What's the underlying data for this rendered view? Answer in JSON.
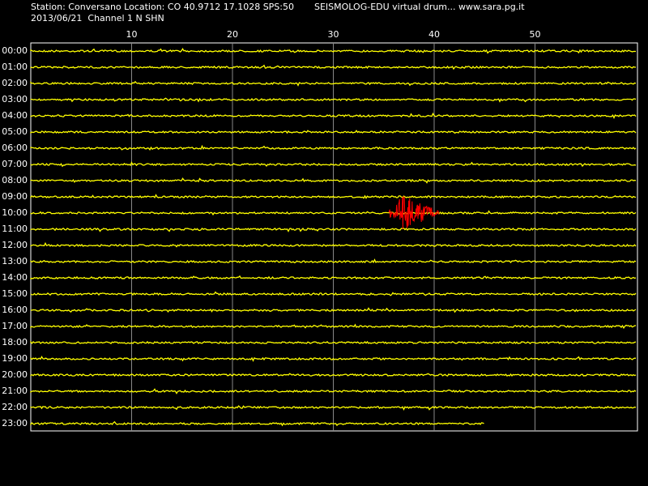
{
  "header": {
    "line1_left": "Station: Conversano Location: CO 40.9712 17.1028 SPS:50",
    "line1_right": "SEISMOLOG-EDU virtual drum... www.sara.pg.it",
    "line2": "2013/06/21  Channel 1 N SHN"
  },
  "chart_data": {
    "type": "drum",
    "xlim": [
      0,
      60
    ],
    "xticks": [
      10,
      20,
      30,
      40,
      50
    ],
    "grid": true,
    "rows": [
      "00:00",
      "01:00",
      "02:00",
      "03:00",
      "04:00",
      "05:00",
      "06:00",
      "07:00",
      "08:00",
      "09:00",
      "10:00",
      "11:00",
      "12:00",
      "13:00",
      "14:00",
      "15:00",
      "16:00",
      "17:00",
      "18:00",
      "19:00",
      "20:00",
      "21:00",
      "22:00",
      "23:00"
    ],
    "trace_color": "#ffff00",
    "last_row_end": 45,
    "event": {
      "row": 10,
      "start": 35.5,
      "end": 40.5,
      "color": "#ff0000"
    }
  }
}
